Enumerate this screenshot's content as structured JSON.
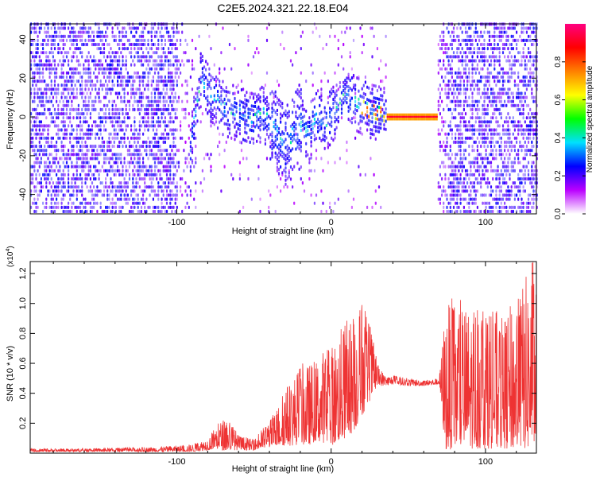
{
  "title": "C2E5.2024.321.22.18.E04",
  "chart_data": [
    {
      "type": "heatmap",
      "xlabel": "Height of straight line (km)",
      "ylabel": "Frequency (Hz)",
      "xlim": [
        -195,
        133
      ],
      "ylim": [
        -50,
        48
      ],
      "xticks": [
        -100,
        0,
        100
      ],
      "yticks": [
        -40,
        -20,
        0,
        20,
        40
      ],
      "colorbar": {
        "label": "Normalized spectral amplitude",
        "range": [
          0,
          1
        ],
        "ticks": [
          "0.0",
          "0.2",
          "0.4",
          "0.6",
          "0.8"
        ],
        "colors": [
          "#ffffff",
          "#ba00ff",
          "#0000ff",
          "#00e0ff",
          "#00ff00",
          "#ffff00",
          "#ff8000",
          "#ff0000",
          "#ff0080"
        ]
      },
      "ridge": {
        "x": [
          -92,
          -88,
          -85,
          -80,
          -75,
          -70,
          -65,
          -60,
          -55,
          -50,
          -45,
          -40,
          -35,
          -30,
          -25,
          -20,
          -15,
          -10,
          -5,
          0,
          5,
          10,
          15,
          20,
          25,
          30,
          35,
          40,
          50,
          60,
          68
        ],
        "y": [
          -22,
          5,
          18,
          12,
          8,
          3,
          2,
          0,
          -2,
          -3,
          1,
          -5,
          -10,
          -14,
          -10,
          -5,
          -12,
          0,
          -6,
          0,
          5,
          10,
          6,
          4,
          2,
          1,
          0,
          0,
          0,
          0,
          0
        ]
      }
    },
    {
      "type": "area",
      "xlabel": "Height of straight line (km)",
      "ylabel": "SNR (10 * v/v)",
      "scale_label": "(x10",
      "scale_exp": "4",
      "xlim": [
        -195,
        133
      ],
      "ylim": [
        0,
        1.28
      ],
      "xticks": [
        -100,
        0,
        100
      ],
      "yticks": [
        0.2,
        0.4,
        0.6,
        0.8,
        1.0,
        1.2
      ],
      "color": "#ee3333",
      "series": [
        {
          "x": [
            -195,
            -160,
            -120,
            -100,
            -90,
            -80,
            -75,
            -70,
            -65,
            -60,
            -50,
            -45,
            -40,
            -35,
            -30,
            -25,
            -20,
            -15,
            -10,
            -5,
            0,
            5,
            10,
            15,
            20,
            25,
            30,
            35,
            40,
            50,
            60,
            70,
            74,
            80,
            90,
            100,
            110,
            120,
            130
          ],
          "upper": [
            0.03,
            0.03,
            0.04,
            0.05,
            0.06,
            0.1,
            0.18,
            0.23,
            0.22,
            0.12,
            0.09,
            0.16,
            0.22,
            0.3,
            0.45,
            0.5,
            0.6,
            0.6,
            0.62,
            0.7,
            0.72,
            0.82,
            0.9,
            0.95,
            1.02,
            0.88,
            0.6,
            0.52,
            0.52,
            0.5,
            0.49,
            0.5,
            1.0,
            1.05,
            0.98,
            1.08,
            0.9,
            1.05,
            1.28
          ],
          "lower": [
            0.01,
            0.01,
            0.01,
            0.01,
            0.01,
            0.02,
            0.03,
            0.02,
            0.02,
            0.02,
            0.02,
            0.03,
            0.04,
            0.05,
            0.05,
            0.05,
            0.06,
            0.05,
            0.08,
            0.07,
            0.05,
            0.08,
            0.1,
            0.15,
            0.25,
            0.35,
            0.45,
            0.45,
            0.46,
            0.45,
            0.45,
            0.46,
            0.02,
            0.03,
            0.03,
            0.03,
            0.03,
            0.03,
            0.03
          ]
        }
      ]
    }
  ]
}
